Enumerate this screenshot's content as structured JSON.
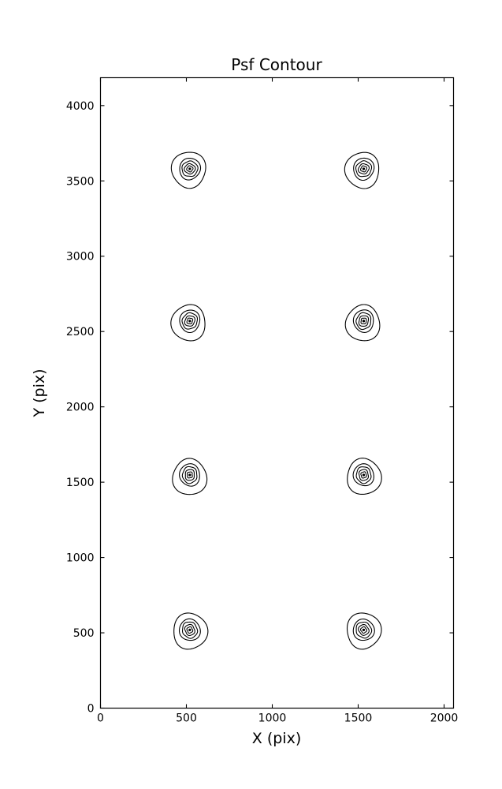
{
  "figure": {
    "background": "#ffffff",
    "line_color": "#000000"
  },
  "chart_data": {
    "type": "contour",
    "title": "Psf Contour",
    "xlabel": "X (pix)",
    "ylabel": "Y (pix)",
    "xlim": [
      0,
      2055
    ],
    "ylim": [
      0,
      4185
    ],
    "xticks": [
      0,
      500,
      1000,
      1500,
      2000
    ],
    "yticks": [
      0,
      500,
      1000,
      1500,
      2000,
      2500,
      3000,
      3500,
      4000
    ],
    "grid": false,
    "legend": "none",
    "description": "Eight PSF contour spots arranged in a 2-column by 4-row grid; each spot has 5 nested closed contour levels around a filled center point",
    "psf_centers": [
      {
        "x": 520,
        "y": 3580
      },
      {
        "x": 1532,
        "y": 3580
      },
      {
        "x": 520,
        "y": 2570
      },
      {
        "x": 1532,
        "y": 2570
      },
      {
        "x": 520,
        "y": 1548
      },
      {
        "x": 1532,
        "y": 1548
      },
      {
        "x": 520,
        "y": 519
      },
      {
        "x": 1532,
        "y": 519
      }
    ],
    "ring_radii_x_units": [
      99,
      60,
      44,
      29,
      16.5
    ],
    "ring_y_elongation": 1.21,
    "center_dot_radius_x_units": 7.5
  }
}
